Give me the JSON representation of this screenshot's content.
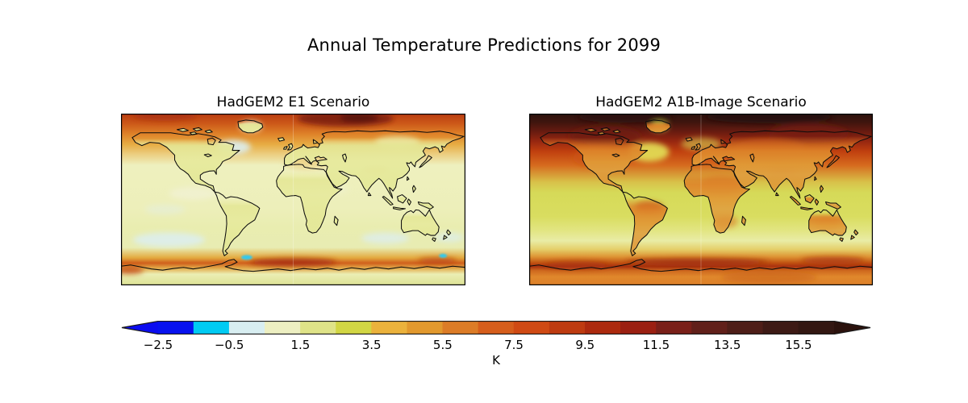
{
  "figure": {
    "title": "Annual Temperature Predictions for 2099",
    "background_color": "#ffffff",
    "text_color": "#000000"
  },
  "subplots": [
    {
      "title": "HadGEM2 E1 Scenario"
    },
    {
      "title": "HadGEM2 A1B-Image Scenario"
    }
  ],
  "colorbar": {
    "label": "K",
    "orientation": "horizontal",
    "tick_labels": [
      "−2.5",
      "−0.5",
      "1.5",
      "3.5",
      "5.5",
      "7.5",
      "9.5",
      "11.5",
      "13.5",
      "15.5"
    ],
    "tick_values": [
      -2.5,
      -0.5,
      1.5,
      3.5,
      5.5,
      7.5,
      9.5,
      11.5,
      13.5,
      15.5
    ],
    "boundaries_K": [
      -2.5,
      -1.5,
      -0.5,
      0.5,
      1.5,
      2.5,
      3.5,
      4.5,
      5.5,
      6.5,
      7.5,
      8.5,
      9.5,
      10.5,
      11.5,
      12.5,
      13.5,
      14.5,
      15.5,
      16.5
    ],
    "segment_colors": [
      "#0712ef",
      "#00cbf3",
      "#d8eef1",
      "#edefc2",
      "#dfe388",
      "#d2d644",
      "#ebb23c",
      "#e2992e",
      "#dc7c27",
      "#d65e1c",
      "#d04a14",
      "#be3b10",
      "#ac2a0e",
      "#9b2012",
      "#7a2019",
      "#61201a",
      "#4e1e18",
      "#3d1a15",
      "#331712"
    ],
    "under_arrow_color": "#0b0cf0",
    "over_arrow_color": "#2b120d",
    "outline_color": "#1a1a1a"
  },
  "chart_data": {
    "type": "heatmap",
    "title": "Annual Temperature Predictions for 2099",
    "units": "K",
    "colorbar_range_K": [
      -2.5,
      16.5
    ],
    "colorbar_step_K": 1.0,
    "extend": "both",
    "projection": "equirectangular world map, 180W-180E, 90N-90S, coastlines drawn in black",
    "panels": [
      {
        "title": "HadGEM2 E1 Scenario",
        "description": "Mild warming: pale yellow-green oceans and land (1-3 K), orange-to-dark-red Arctic band at top (5-11 K, darkest over central Arctic), pale blue patches (around -0.5 to 0.5 K) in mid ocean and Southern Ocean, small bright cyan spots (-1 to -2 K) near Antarctica, orange band with dark red core along 60S, pale Antarctica (1-2 K)",
        "approx_zonal_mean_anomaly_K": {
          "lat": [
            90,
            75,
            60,
            45,
            30,
            15,
            0,
            -15,
            -30,
            -45,
            -60,
            -75,
            -90
          ],
          "values": [
            9,
            7,
            3.5,
            2.5,
            2,
            1.5,
            1.5,
            1,
            0.5,
            1,
            5.5,
            2,
            1.5
          ]
        }
      },
      {
        "title": "HadGEM2 A1B-Image Scenario",
        "description": "Strong warming: yellow-green oceans (2-4 K), orange continents (4-6 K) with dark red patches (Amazon, Africa, Siberia), nearly black-brown Arctic band at top (13-16+ K), yellow North Atlantic warming hole, pale yellow Southern Ocean strip, dark red band along the Antarctic coast (9-12 K), orange Antarctica (4-6 K)",
        "approx_zonal_mean_anomaly_K": {
          "lat": [
            90,
            75,
            60,
            45,
            30,
            15,
            0,
            -15,
            -30,
            -45,
            -60,
            -75,
            -90
          ],
          "values": [
            15,
            12,
            7,
            4.5,
            3.5,
            3,
            3,
            2.5,
            2,
            1.5,
            8,
            5,
            4
          ]
        }
      }
    ],
    "legend_position": "bottom horizontal colorbar labeled K"
  }
}
